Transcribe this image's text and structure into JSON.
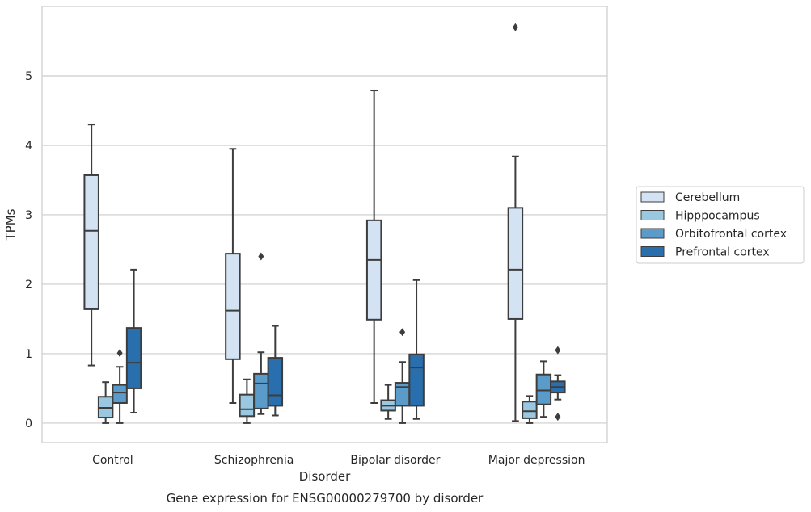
{
  "caption": "Gene expression for ENSG00000279700 by disorder",
  "chart_data": {
    "type": "box",
    "xlabel": "Disorder",
    "ylabel": "TPMs",
    "ylim": [
      -0.28,
      6.0
    ],
    "yticks": [
      0,
      1,
      2,
      3,
      4,
      5
    ],
    "grid": "horizontal",
    "legend_position": "right",
    "categories": [
      "Control",
      "Schizophrenia",
      "Bipolar disorder",
      "Major depression"
    ],
    "series": [
      {
        "name": "Cerebellum",
        "color": "#d3e3f3",
        "boxes": [
          {
            "whislo": 0.83,
            "q1": 1.64,
            "med": 2.77,
            "q3": 3.57,
            "whishi": 4.3,
            "fliers": []
          },
          {
            "whislo": 0.29,
            "q1": 0.92,
            "med": 1.62,
            "q3": 2.44,
            "whishi": 3.95,
            "fliers": []
          },
          {
            "whislo": 0.29,
            "q1": 1.49,
            "med": 2.35,
            "q3": 2.92,
            "whishi": 4.79,
            "fliers": []
          },
          {
            "whislo": 0.03,
            "q1": 1.5,
            "med": 2.21,
            "q3": 3.1,
            "whishi": 3.84,
            "fliers": [
              5.7
            ]
          }
        ]
      },
      {
        "name": "Hipppocampus",
        "color": "#9ac8e0",
        "boxes": [
          {
            "whislo": 0.0,
            "q1": 0.08,
            "med": 0.22,
            "q3": 0.38,
            "whishi": 0.59,
            "fliers": []
          },
          {
            "whislo": 0.0,
            "q1": 0.1,
            "med": 0.2,
            "q3": 0.41,
            "whishi": 0.63,
            "fliers": []
          },
          {
            "whislo": 0.06,
            "q1": 0.18,
            "med": 0.25,
            "q3": 0.33,
            "whishi": 0.55,
            "fliers": []
          },
          {
            "whislo": 0.0,
            "q1": 0.07,
            "med": 0.17,
            "q3": 0.31,
            "whishi": 0.39,
            "fliers": []
          }
        ]
      },
      {
        "name": "Orbitofrontal cortex",
        "color": "#5a9bc9",
        "boxes": [
          {
            "whislo": 0.0,
            "q1": 0.29,
            "med": 0.44,
            "q3": 0.55,
            "whishi": 0.81,
            "fliers": [
              1.01
            ]
          },
          {
            "whislo": 0.13,
            "q1": 0.21,
            "med": 0.57,
            "q3": 0.71,
            "whishi": 1.02,
            "fliers": [
              2.4
            ]
          },
          {
            "whislo": 0.0,
            "q1": 0.25,
            "med": 0.52,
            "q3": 0.58,
            "whishi": 0.88,
            "fliers": [
              1.31
            ]
          },
          {
            "whislo": 0.09,
            "q1": 0.27,
            "med": 0.47,
            "q3": 0.7,
            "whishi": 0.89,
            "fliers": []
          }
        ]
      },
      {
        "name": "Prefrontal cortex",
        "color": "#2a6fad",
        "boxes": [
          {
            "whislo": 0.15,
            "q1": 0.5,
            "med": 0.87,
            "q3": 1.37,
            "whishi": 2.21,
            "fliers": []
          },
          {
            "whislo": 0.11,
            "q1": 0.25,
            "med": 0.4,
            "q3": 0.94,
            "whishi": 1.4,
            "fliers": []
          },
          {
            "whislo": 0.06,
            "q1": 0.25,
            "med": 0.8,
            "q3": 0.99,
            "whishi": 2.06,
            "fliers": []
          },
          {
            "whislo": 0.34,
            "q1": 0.44,
            "med": 0.52,
            "q3": 0.6,
            "whishi": 0.69,
            "fliers": [
              1.05,
              0.09
            ]
          }
        ]
      }
    ]
  }
}
